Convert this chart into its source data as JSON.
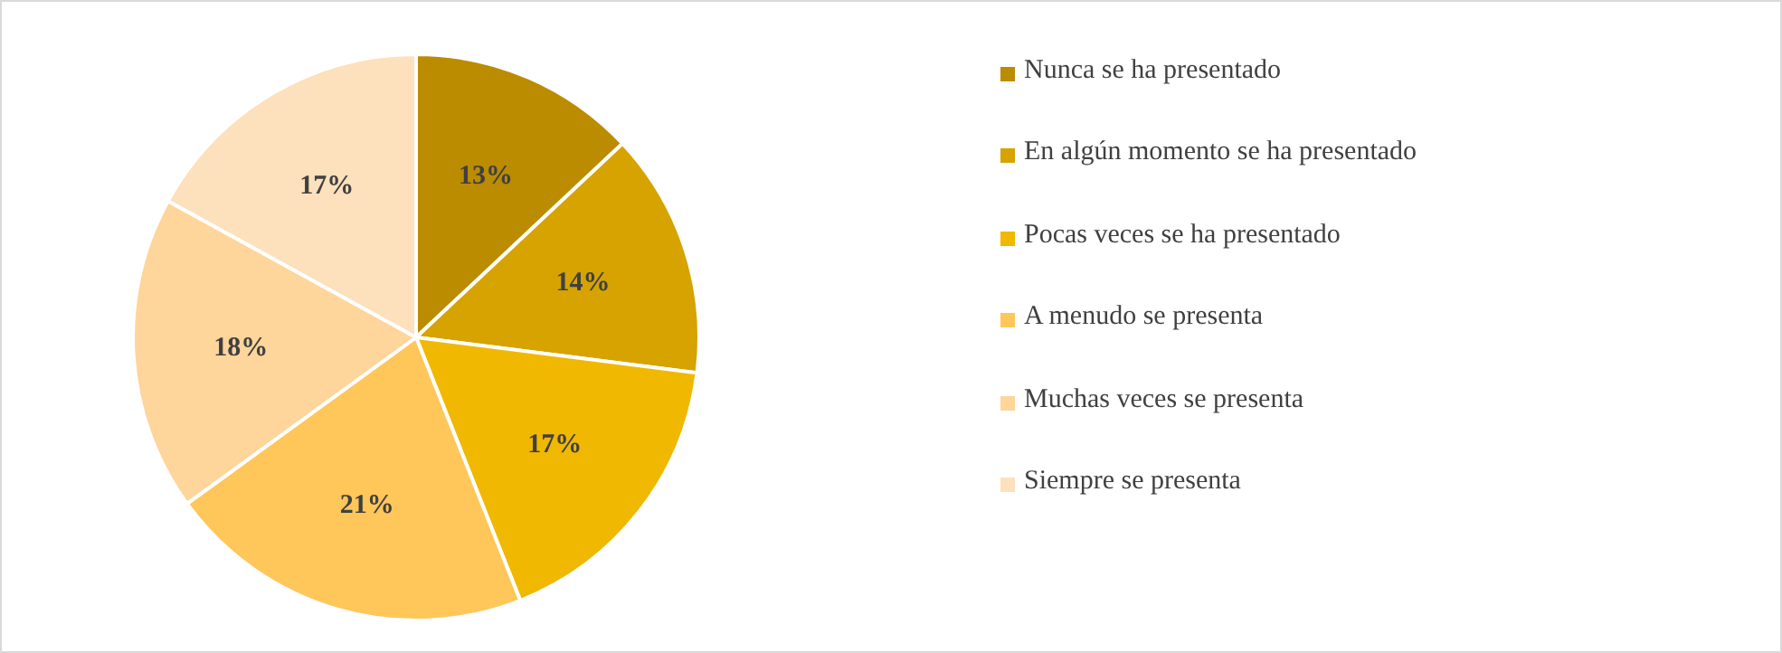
{
  "chart_data": {
    "type": "pie",
    "categories": [
      "Nunca se ha presentado",
      "En algún momento se ha presentado",
      "Pocas veces se ha presentado",
      "A menudo se presenta",
      "Muchas veces se presenta",
      "Siempre se presenta"
    ],
    "values": [
      13,
      14,
      17,
      21,
      18,
      17
    ],
    "colors": [
      "#bb8b00",
      "#d6a300",
      "#f0b800",
      "#ffc65a",
      "#fed59a",
      "#fde0bc"
    ],
    "value_labels": [
      "13%",
      "14%",
      "17%",
      "21%",
      "18%",
      "17%"
    ],
    "legend": "right"
  }
}
